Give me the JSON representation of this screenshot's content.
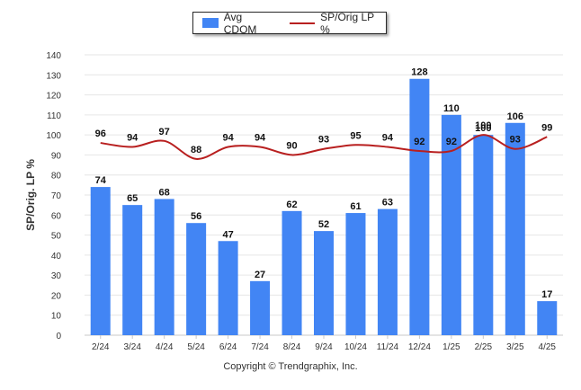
{
  "legend": {
    "bar_label": "Avg CDOM",
    "line_label": "SP/Orig LP %"
  },
  "footer": {
    "copyright": "Copyright © Trendgraphix, Inc."
  },
  "colors": {
    "bar": "#4285f4",
    "line": "#b81f1f",
    "grid": "#e6e6e6"
  },
  "chart_data": {
    "type": "bar",
    "title": "",
    "xlabel": "",
    "ylabel": "SP/Orig. LP %",
    "ylim": [
      0,
      140
    ],
    "yticks": [
      0,
      10,
      20,
      30,
      40,
      50,
      60,
      70,
      80,
      90,
      100,
      110,
      120,
      130,
      140
    ],
    "grid": true,
    "legend_position": "top-center",
    "categories": [
      "2/24",
      "3/24",
      "4/24",
      "5/24",
      "6/24",
      "7/24",
      "8/24",
      "9/24",
      "10/24",
      "11/24",
      "12/24",
      "1/25",
      "2/25",
      "3/25",
      "4/25"
    ],
    "series": [
      {
        "name": "Avg CDOM",
        "type": "bar",
        "values": [
          74,
          65,
          68,
          56,
          47,
          27,
          62,
          52,
          61,
          63,
          128,
          110,
          100,
          106,
          17
        ]
      },
      {
        "name": "SP/Orig LP %",
        "type": "line",
        "values": [
          96,
          94,
          97,
          88,
          94,
          94,
          90,
          93,
          95,
          94,
          92,
          92,
          100,
          93,
          99
        ]
      }
    ]
  }
}
